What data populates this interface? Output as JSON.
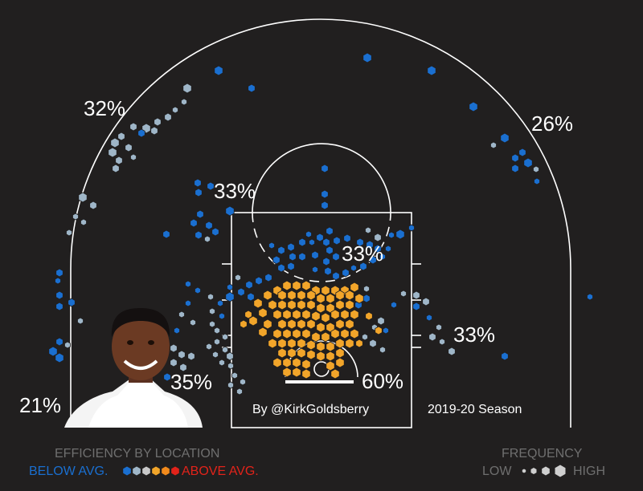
{
  "chart_data": {
    "type": "scatter",
    "subtype": "hexbin shot chart",
    "season": "2019-20 Season",
    "credit": "By @KirkGoldsberry",
    "zones": [
      {
        "label": "32%",
        "zone": "left wing three"
      },
      {
        "label": "26%",
        "zone": "right wing three"
      },
      {
        "label": "33%",
        "zone": "left elbow mid-range"
      },
      {
        "label": "33%",
        "zone": "paint above restricted area"
      },
      {
        "label": "33%",
        "zone": "right baseline mid-range"
      },
      {
        "label": "35%",
        "zone": "left baseline mid-range"
      },
      {
        "label": "21%",
        "zone": "left corner three"
      },
      {
        "label": "60%",
        "zone": "restricted area"
      }
    ],
    "hexes": {
      "color_scale": [
        "#1a6fd0",
        "#9fb6c8",
        "#c9c9c9",
        "#f2a52a",
        "#f28a1c",
        "#e2231a"
      ],
      "size_scale": "frequency"
    },
    "legend": {
      "efficiency_title": "EFFICIENCY BY LOCATION",
      "below": "BELOW AVG.",
      "above": "ABOVE AVG.",
      "frequency_title": "FREQUENCY",
      "low": "LOW",
      "high": "HIGH",
      "below_color": "#1a6fd0",
      "above_color": "#e2231a"
    }
  },
  "colors": {
    "background": "#211f1f",
    "court_lines": "#ffffff",
    "blue": "#1a6fd0",
    "steel": "#9fb6c8",
    "orange": "#f2a52a"
  }
}
